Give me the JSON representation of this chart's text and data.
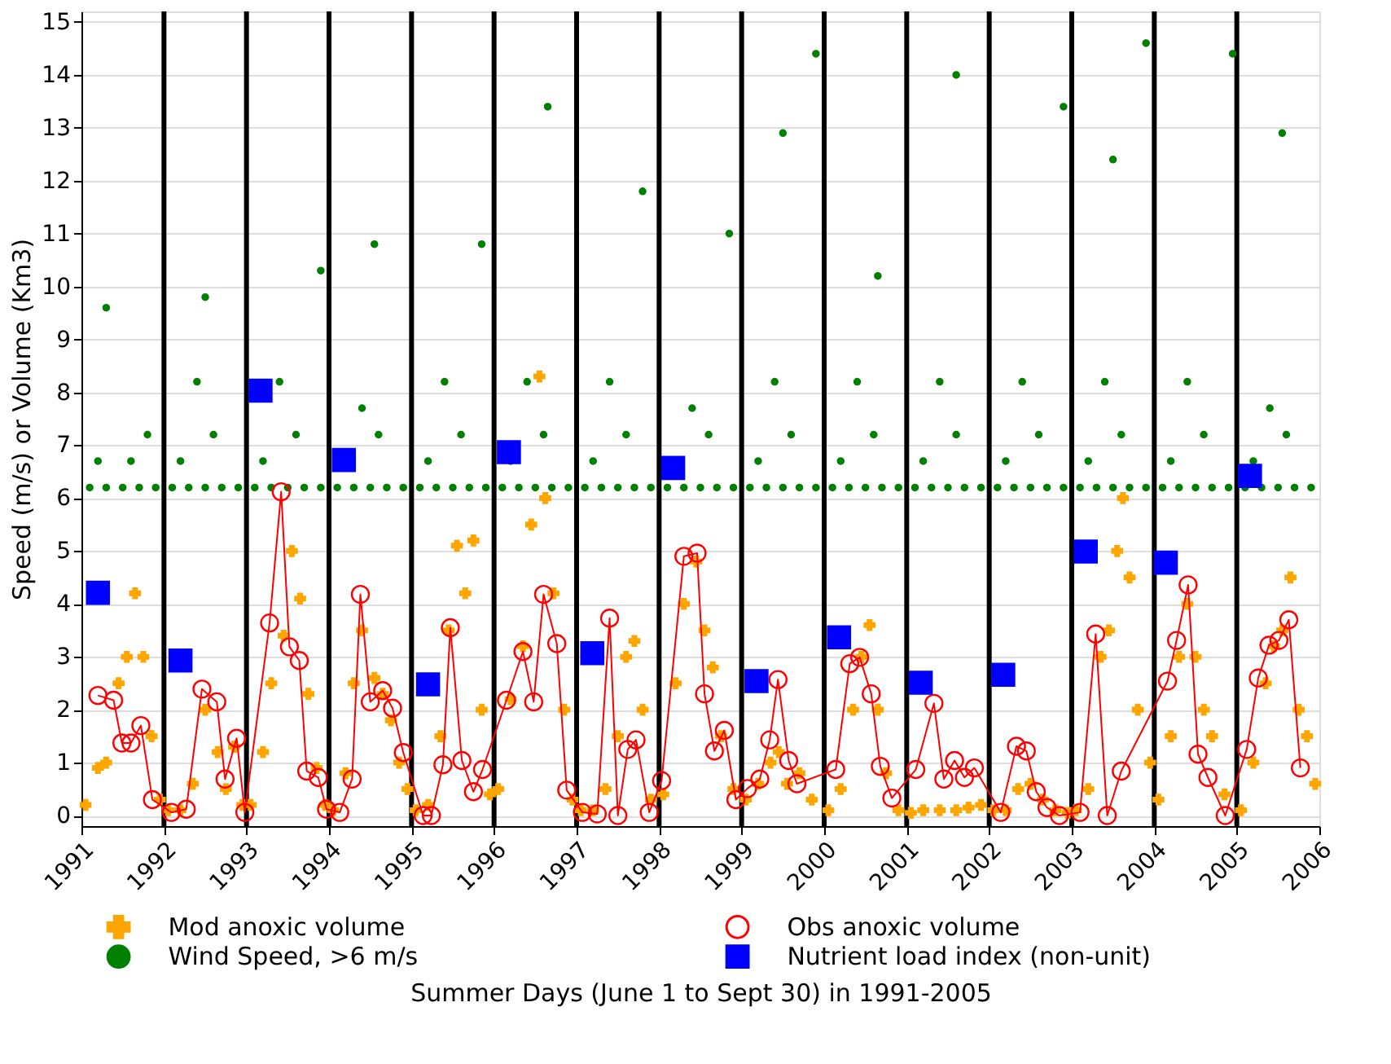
{
  "chart_data": {
    "type": "scatter",
    "xlabel": "Summer Days (June 1 to Sept 30) in 1991-2005",
    "ylabel": "Speed (m/s) or Volume (Km3)",
    "xlim": [
      1991,
      2006
    ],
    "xticks": [
      1991,
      1992,
      1993,
      1994,
      1995,
      1996,
      1997,
      1998,
      1999,
      2000,
      2001,
      2002,
      2003,
      2004,
      2005,
      2006
    ],
    "ylim": [
      -0.2,
      15.2
    ],
    "yticks": [
      0,
      1,
      2,
      3,
      4,
      5,
      6,
      7,
      8,
      9,
      10,
      11,
      12,
      13,
      14,
      15
    ],
    "grid": "y",
    "legend": "bottom",
    "ref_lines": [
      {
        "axis": "x",
        "value": 1992,
        "color": "#000000"
      },
      {
        "axis": "x",
        "value": 1993,
        "color": "#000000"
      },
      {
        "axis": "x",
        "value": 1994,
        "color": "#000000"
      },
      {
        "axis": "x",
        "value": 1995,
        "color": "#000000"
      },
      {
        "axis": "x",
        "value": 1996,
        "color": "#000000"
      },
      {
        "axis": "x",
        "value": 1997,
        "color": "#000000"
      },
      {
        "axis": "x",
        "value": 1998,
        "color": "#000000"
      },
      {
        "axis": "x",
        "value": 1999,
        "color": "#000000"
      },
      {
        "axis": "x",
        "value": 2000,
        "color": "#000000"
      },
      {
        "axis": "x",
        "value": 2001,
        "color": "#000000"
      },
      {
        "axis": "x",
        "value": 2002,
        "color": "#000000"
      },
      {
        "axis": "x",
        "value": 2003,
        "color": "#000000"
      },
      {
        "axis": "x",
        "value": 2004,
        "color": "#000000"
      },
      {
        "axis": "x",
        "value": 2005,
        "color": "#000000"
      }
    ],
    "series": [
      {
        "name": "Wind Speed, >6 m/s",
        "marker": "circle",
        "color": "#008000",
        "x": [
          1991.1,
          1991.3,
          1991.5,
          1991.7,
          1991.9,
          1991.2,
          1991.6,
          1991.8,
          1991.3,
          1992.1,
          1992.3,
          1992.5,
          1992.7,
          1992.9,
          1992.2,
          1992.6,
          1992.4,
          1992.5,
          1993.1,
          1993.3,
          1993.5,
          1993.7,
          1993.9,
          1993.2,
          1993.6,
          1993.4,
          1993.9,
          1994.1,
          1994.3,
          1994.5,
          1994.7,
          1994.9,
          1994.6,
          1994.4,
          1994.55,
          1995.1,
          1995.3,
          1995.5,
          1995.7,
          1995.9,
          1995.2,
          1995.6,
          1995.4,
          1995.85,
          1996.1,
          1996.3,
          1996.5,
          1996.7,
          1996.9,
          1996.2,
          1996.6,
          1996.4,
          1996.65,
          1997.1,
          1997.3,
          1997.5,
          1997.7,
          1997.9,
          1997.2,
          1997.6,
          1997.4,
          1997.8,
          1998.1,
          1998.3,
          1998.5,
          1998.7,
          1998.9,
          1998.6,
          1998.4,
          1998.85,
          1999.1,
          1999.3,
          1999.5,
          1999.7,
          1999.9,
          1999.2,
          1999.6,
          1999.4,
          1999.5,
          1999.9,
          2000.1,
          2000.3,
          2000.5,
          2000.7,
          2000.9,
          2000.2,
          2000.6,
          2000.4,
          2000.65,
          2001.1,
          2001.3,
          2001.5,
          2001.7,
          2001.9,
          2001.2,
          2001.6,
          2001.4,
          2001.6,
          2002.1,
          2002.3,
          2002.5,
          2002.7,
          2002.9,
          2002.2,
          2002.6,
          2002.4,
          2002.9,
          2003.1,
          2003.3,
          2003.5,
          2003.7,
          2003.9,
          2003.2,
          2003.6,
          2003.4,
          2003.5,
          2003.9,
          2004.1,
          2004.3,
          2004.5,
          2004.7,
          2004.9,
          2004.2,
          2004.6,
          2004.4,
          2004.95,
          2005.1,
          2005.3,
          2005.5,
          2005.7,
          2005.9,
          2005.2,
          2005.6,
          2005.4,
          2005.55
        ],
        "values": [
          6.2,
          6.2,
          6.2,
          6.2,
          6.2,
          6.7,
          6.7,
          7.2,
          9.6,
          6.2,
          6.2,
          6.2,
          6.2,
          6.2,
          6.7,
          7.2,
          8.2,
          9.8,
          6.2,
          6.2,
          6.2,
          6.2,
          6.2,
          6.7,
          7.2,
          8.2,
          10.3,
          6.2,
          6.2,
          6.2,
          6.2,
          6.2,
          7.2,
          7.7,
          10.8,
          6.2,
          6.2,
          6.2,
          6.2,
          6.2,
          6.7,
          7.2,
          8.2,
          10.8,
          6.2,
          6.2,
          6.2,
          6.2,
          6.2,
          6.7,
          7.2,
          8.2,
          13.4,
          6.2,
          6.2,
          6.2,
          6.2,
          6.2,
          6.7,
          7.2,
          8.2,
          11.8,
          6.2,
          6.2,
          6.2,
          6.2,
          6.2,
          7.2,
          7.7,
          11.0,
          6.2,
          6.2,
          6.2,
          6.2,
          6.2,
          6.7,
          7.2,
          8.2,
          12.9,
          14.4,
          6.2,
          6.2,
          6.2,
          6.2,
          6.2,
          6.7,
          7.2,
          8.2,
          10.2,
          6.2,
          6.2,
          6.2,
          6.2,
          6.2,
          6.7,
          7.2,
          8.2,
          14.0,
          6.2,
          6.2,
          6.2,
          6.2,
          6.2,
          6.7,
          7.2,
          8.2,
          13.4,
          6.2,
          6.2,
          6.2,
          6.2,
          6.2,
          6.7,
          7.2,
          8.2,
          12.4,
          14.6,
          6.2,
          6.2,
          6.2,
          6.2,
          6.2,
          6.7,
          7.2,
          8.2,
          14.4,
          6.2,
          6.2,
          6.2,
          6.2,
          6.2,
          6.7,
          7.2,
          7.7,
          12.9
        ]
      },
      {
        "name": "Mod anoxic volume",
        "marker": "cross",
        "color": "#ffa500",
        "x": [
          1991.05,
          1991.2,
          1991.3,
          1991.45,
          1991.55,
          1991.65,
          1991.75,
          1991.85,
          1991.95,
          1992.05,
          1992.2,
          1992.35,
          1992.5,
          1992.65,
          1992.75,
          1992.85,
          1992.95,
          1993.05,
          1993.2,
          1993.3,
          1993.45,
          1993.55,
          1993.65,
          1993.75,
          1993.85,
          1993.95,
          1994.05,
          1994.2,
          1994.3,
          1994.4,
          1994.55,
          1994.65,
          1994.75,
          1994.85,
          1994.95,
          1995.05,
          1995.2,
          1995.35,
          1995.45,
          1995.55,
          1995.65,
          1995.75,
          1995.85,
          1995.95,
          1996.05,
          1996.2,
          1996.35,
          1996.45,
          1996.55,
          1996.62,
          1996.72,
          1996.85,
          1996.95,
          1997.05,
          1997.2,
          1997.35,
          1997.5,
          1997.6,
          1997.7,
          1997.8,
          1997.9,
          1998.05,
          1998.2,
          1998.3,
          1998.45,
          1998.55,
          1998.65,
          1998.75,
          1998.9,
          1999.05,
          1999.2,
          1999.35,
          1999.45,
          1999.55,
          1999.7,
          1999.85,
          2000.05,
          2000.2,
          2000.35,
          2000.45,
          2000.55,
          2000.65,
          2000.75,
          2000.9,
          2001.05,
          2001.2,
          2001.4,
          2001.6,
          2001.75,
          2001.9,
          2002.05,
          2002.2,
          2002.35,
          2002.5,
          2002.65,
          2002.8,
          2002.95,
          2003.05,
          2003.2,
          2003.35,
          2003.45,
          2003.55,
          2003.62,
          2003.7,
          2003.8,
          2003.95,
          2004.05,
          2004.2,
          2004.3,
          2004.4,
          2004.5,
          2004.6,
          2004.7,
          2004.85,
          2005.05,
          2005.2,
          2005.35,
          2005.45,
          2005.55,
          2005.65,
          2005.75,
          2005.85,
          2005.95
        ],
        "values": [
          0.2,
          0.9,
          1.0,
          2.5,
          3.0,
          4.2,
          3.0,
          1.5,
          0.3,
          0.1,
          0.1,
          0.6,
          2.0,
          1.2,
          0.5,
          1.3,
          0.2,
          0.2,
          1.2,
          2.5,
          3.4,
          5.0,
          4.1,
          2.3,
          0.9,
          0.2,
          0.1,
          0.8,
          2.5,
          3.5,
          2.6,
          2.3,
          1.8,
          1.0,
          0.5,
          0.1,
          0.2,
          1.5,
          3.5,
          5.1,
          4.2,
          5.2,
          2.0,
          0.4,
          0.5,
          2.2,
          3.2,
          5.5,
          8.3,
          6.0,
          4.2,
          2.0,
          0.3,
          0.1,
          0.1,
          0.5,
          1.5,
          3.0,
          3.3,
          2.0,
          0.3,
          0.4,
          2.5,
          4.0,
          4.8,
          3.5,
          2.8,
          1.5,
          0.5,
          0.3,
          0.6,
          1.0,
          1.2,
          0.6,
          0.8,
          0.3,
          0.1,
          0.5,
          2.0,
          3.0,
          3.6,
          2.0,
          0.8,
          0.1,
          0.05,
          0.1,
          0.1,
          0.1,
          0.15,
          0.2,
          0.1,
          0.1,
          0.5,
          0.6,
          0.3,
          0.1,
          0.05,
          0.1,
          0.5,
          3.0,
          3.5,
          5.0,
          6.0,
          4.5,
          2.0,
          1.0,
          0.3,
          1.5,
          3.0,
          4.0,
          3.0,
          2.0,
          1.5,
          0.4,
          0.1,
          1.0,
          2.5,
          3.2,
          3.5,
          4.5,
          2.0,
          1.5,
          0.6
        ]
      },
      {
        "name": "Obs anoxic volume",
        "type": "line",
        "marker": "circle",
        "line_style": "solid",
        "color": "#ff0000",
        "x": [
          1991.2,
          1991.39,
          1991.49,
          1991.6,
          1991.72,
          1991.86,
          1992.09,
          1992.27,
          1992.46,
          1992.64,
          1992.74,
          1992.88,
          1992.98,
          1993.28,
          1993.42,
          1993.52,
          1993.64,
          1993.73,
          1993.87,
          1993.97,
          1994.13,
          1994.28,
          1994.38,
          1994.5,
          1994.65,
          1994.77,
          1994.9,
          1995.14,
          1995.24,
          1995.38,
          1995.47,
          1995.61,
          1995.75,
          1995.86,
          1996.15,
          1996.35,
          1996.48,
          1996.6,
          1996.76,
          1996.88,
          1997.07,
          1997.25,
          1997.4,
          1997.5,
          1997.62,
          1997.72,
          1997.88,
          1998.03,
          1998.3,
          1998.46,
          1998.55,
          1998.67,
          1998.79,
          1998.93,
          1999.07,
          1999.22,
          1999.34,
          1999.44,
          1999.57,
          1999.67,
          2000.14,
          2000.31,
          2000.43,
          2000.57,
          2000.68,
          2000.82,
          2001.11,
          2001.33,
          2001.45,
          2001.58,
          2001.7,
          2001.82,
          2002.14,
          2002.33,
          2002.45,
          2002.57,
          2002.7,
          2002.85,
          2003.1,
          2003.29,
          2003.43,
          2003.6,
          2004.16,
          2004.27,
          2004.41,
          2004.53,
          2004.65,
          2004.86,
          2005.12,
          2005.26,
          2005.39,
          2005.51,
          2005.63,
          2005.77
        ],
        "values": [
          2.27,
          2.18,
          1.37,
          1.37,
          1.7,
          0.3,
          0.06,
          0.12,
          2.39,
          2.15,
          0.69,
          1.46,
          0.06,
          3.64,
          6.12,
          3.19,
          2.93,
          0.84,
          0.72,
          0.12,
          0.06,
          0.69,
          4.18,
          2.15,
          2.36,
          2.03,
          1.19,
          0,
          0,
          0.96,
          3.55,
          1.04,
          0.45,
          0.87,
          2.18,
          3.1,
          2.15,
          4.18,
          3.25,
          0.48,
          0.06,
          0.03,
          3.73,
          0,
          1.25,
          1.43,
          0.06,
          0.66,
          4.9,
          4.96,
          2.3,
          1.22,
          1.61,
          0.3,
          0.51,
          0.69,
          1.43,
          2.57,
          1.04,
          0.6,
          0.87,
          2.87,
          2.99,
          2.3,
          0.93,
          0.33,
          0.87,
          2.12,
          0.69,
          1.04,
          0.72,
          0.9,
          0.06,
          1.31,
          1.22,
          0.45,
          0.15,
          0,
          0.06,
          3.43,
          0,
          0.84,
          2.54,
          3.31,
          4.36,
          1.16,
          0.72,
          0,
          1.25,
          2.6,
          3.22,
          3.31,
          3.7,
          0.9
        ]
      },
      {
        "name": "Nutrient load index (non-unit)",
        "marker": "square",
        "color": "#0000ff",
        "x": [
          1991.2,
          1992.2,
          1993.17,
          1994.18,
          1995.2,
          1996.18,
          1997.19,
          1998.17,
          1999.18,
          2000.18,
          2001.17,
          2002.17,
          2003.17,
          2004.14,
          2005.16
        ],
        "values": [
          4.21,
          2.93,
          8.03,
          6.72,
          2.48,
          6.87,
          3.07,
          6.57,
          2.54,
          3.37,
          2.51,
          2.66,
          4.99,
          4.78,
          6.42
        ]
      }
    ]
  }
}
